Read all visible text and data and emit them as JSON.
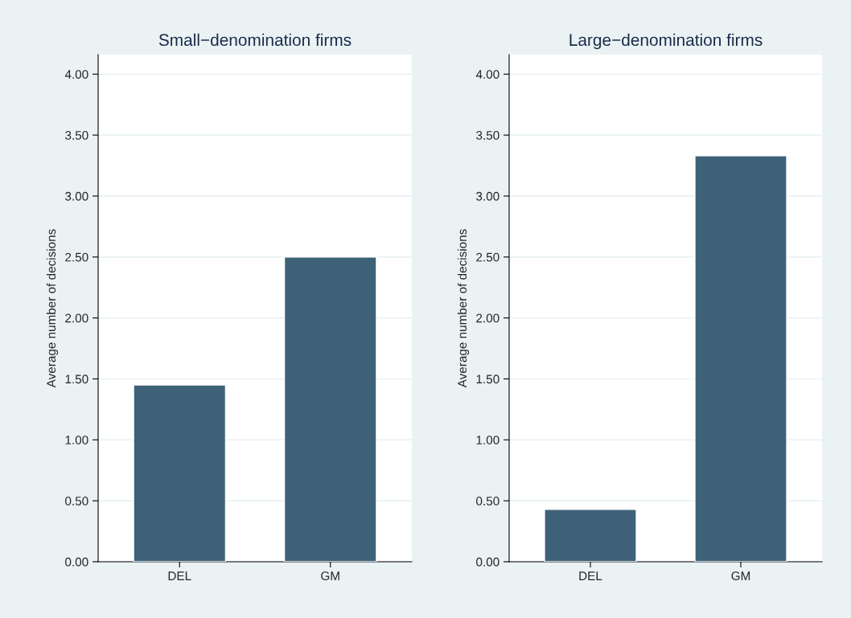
{
  "chart_data": [
    {
      "type": "bar",
      "title": "Small−denomination firms",
      "ylabel": "Average number of decisions",
      "categories": [
        "DEL",
        "GM"
      ],
      "values": [
        1.45,
        2.5
      ],
      "color": "#3e6179",
      "ylim": [
        0,
        4.16
      ],
      "yticks": [
        {
          "value": 0,
          "label": "0.00"
        },
        {
          "value": 0.5,
          "label": "0.50"
        },
        {
          "value": 1,
          "label": "1.00"
        },
        {
          "value": 1.5,
          "label": "1.50"
        },
        {
          "value": 2,
          "label": "2.00"
        },
        {
          "value": 2.5,
          "label": "2.50"
        },
        {
          "value": 3,
          "label": "3.00"
        },
        {
          "value": 3.5,
          "label": "3.50"
        },
        {
          "value": 4,
          "label": "4.00"
        }
      ],
      "grid": "y"
    },
    {
      "type": "bar",
      "title": "Large−denomination firms",
      "ylabel": "Average number of decisions",
      "categories": [
        "DEL",
        "GM"
      ],
      "values": [
        0.43,
        3.33
      ],
      "color": "#3e6179",
      "ylim": [
        0,
        4.16
      ],
      "yticks": [
        {
          "value": 0,
          "label": "0.00"
        },
        {
          "value": 0.5,
          "label": "0.50"
        },
        {
          "value": 1,
          "label": "1.00"
        },
        {
          "value": 1.5,
          "label": "1.50"
        },
        {
          "value": 2,
          "label": "2.00"
        },
        {
          "value": 2.5,
          "label": "2.50"
        },
        {
          "value": 3,
          "label": "3.00"
        },
        {
          "value": 3.5,
          "label": "3.50"
        },
        {
          "value": 4,
          "label": "4.00"
        }
      ],
      "grid": "y"
    }
  ]
}
